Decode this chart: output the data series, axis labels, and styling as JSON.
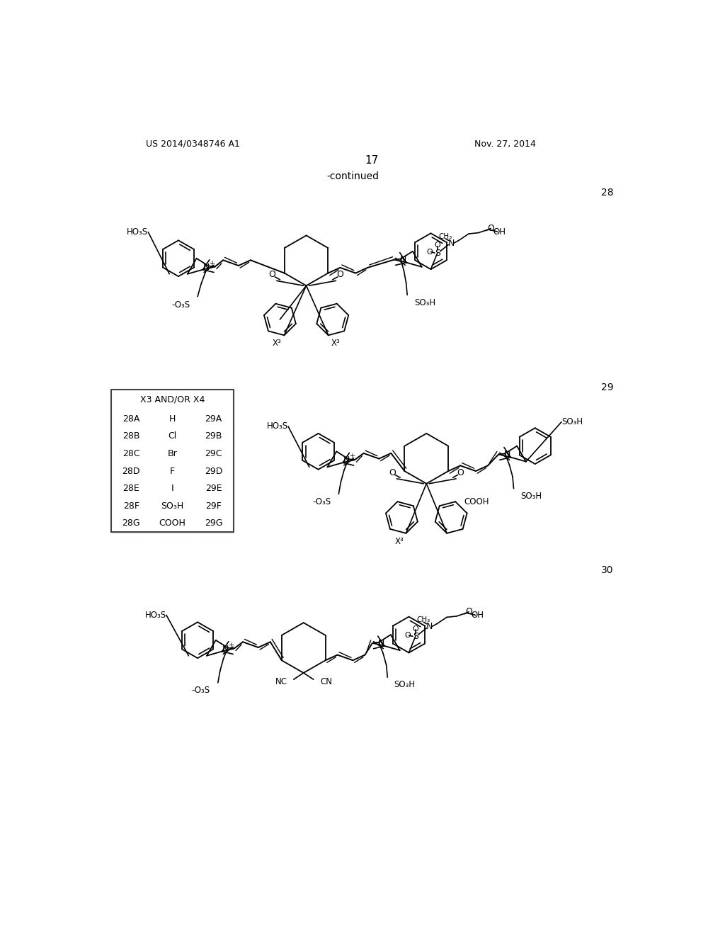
{
  "bg_color": "#ffffff",
  "page_header_left": "US 2014/0348746 A1",
  "page_header_right": "Nov. 27, 2014",
  "page_number": "17",
  "continued_text": "-continued",
  "compound_28_label": "28",
  "compound_29_label": "29",
  "compound_30_label": "30",
  "table": {
    "header": "X3 AND/OR X4",
    "rows": [
      [
        "28A",
        "H",
        "29A"
      ],
      [
        "28B",
        "Cl",
        "29B"
      ],
      [
        "28C",
        "Br",
        "29C"
      ],
      [
        "28D",
        "F",
        "29D"
      ],
      [
        "28E",
        "I",
        "29E"
      ],
      [
        "28F",
        "SO₃H",
        "29F"
      ],
      [
        "28G",
        "COOH",
        "29G"
      ]
    ]
  }
}
